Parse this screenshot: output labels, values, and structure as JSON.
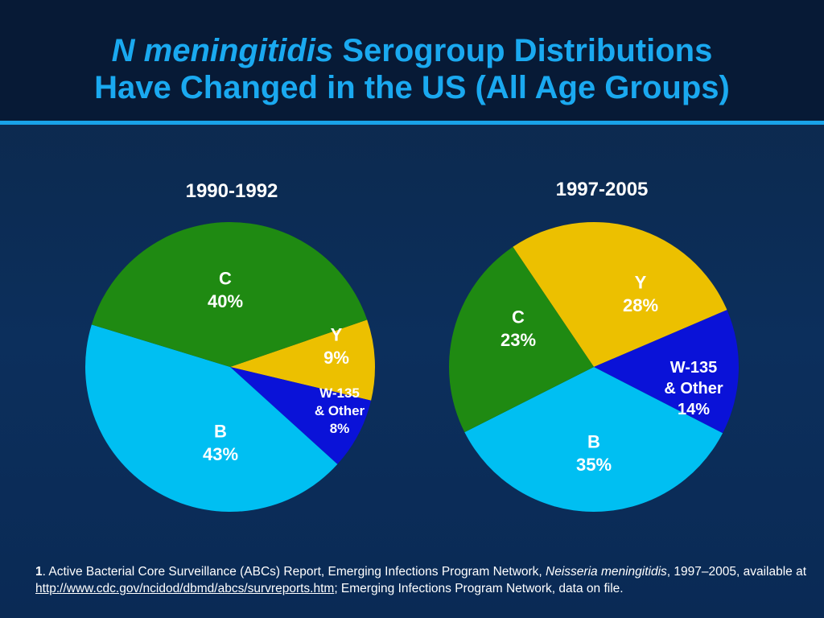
{
  "title": {
    "italic_part": "N meningitidis",
    "rest_line1": "Serogroup Distributions",
    "line2": "Have Changed in the US (All Age Groups)"
  },
  "colors": {
    "C": "#1f8a12",
    "Y": "#ecc000",
    "W135": "#0a12d8",
    "B": "#00bff2"
  },
  "chart_data": [
    {
      "type": "pie",
      "title": "1990-1992",
      "slices": [
        {
          "key": "Y",
          "label_lines": [
            "Y",
            "9%"
          ],
          "value": 9
        },
        {
          "key": "W135",
          "label_lines": [
            "W-135",
            "& Other",
            "8%"
          ],
          "value": 8
        },
        {
          "key": "B",
          "label_lines": [
            "B",
            "43%"
          ],
          "value": 43
        },
        {
          "key": "C",
          "label_lines": [
            "C",
            "40%"
          ],
          "value": 40
        }
      ]
    },
    {
      "type": "pie",
      "title": "1997-2005",
      "slices": [
        {
          "key": "Y",
          "label_lines": [
            "Y",
            "28%"
          ],
          "value": 28
        },
        {
          "key": "W135",
          "label_lines": [
            "W-135",
            "& Other",
            "14%"
          ],
          "value": 14
        },
        {
          "key": "B",
          "label_lines": [
            "B",
            "35%"
          ],
          "value": 35
        },
        {
          "key": "C",
          "label_lines": [
            "C",
            "23%"
          ],
          "value": 23
        }
      ]
    }
  ],
  "footnote": {
    "number": "1",
    "text1": ". Active Bacterial Core Surveillance (ABCs) Report, Emerging Infections Program Network, ",
    "italic": "Neisseria meningitidis",
    "text2": ", 1997–2005, available at ",
    "link": "http://www.cdc.gov/ncidod/dbmd/abcs/survreports.htm",
    "text3": "; Emerging Infections Program Network, data on file."
  }
}
